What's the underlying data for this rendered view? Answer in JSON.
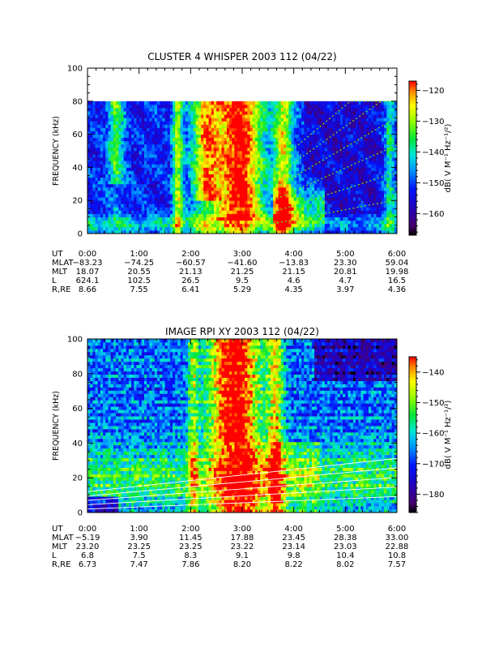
{
  "chart_data": [
    {
      "type": "heatmap",
      "title": "CLUSTER 4 WHISPER 2003 112 (04/22)",
      "ylabel": "FREQUENCY (kHz)",
      "ylim": [
        0,
        100
      ],
      "y_ticks": [
        "0",
        "20",
        "40",
        "60",
        "80",
        "100"
      ],
      "data_ylim": [
        0,
        80
      ],
      "x_ticks": [
        "0:00",
        "1:00",
        "2:00",
        "3:00",
        "4:00",
        "5:00",
        "6:00"
      ],
      "colorbar": {
        "label": "dB( V M⁻¹ Hz⁻¹/²)",
        "range": [
          -167,
          -117
        ],
        "ticks": [
          "-120",
          "-130",
          "-140",
          "-150",
          "-160"
        ]
      },
      "ephemeris": [
        {
          "label": "UT",
          "values": [
            "0:00",
            "1:00",
            "2:00",
            "3:00",
            "4:00",
            "5:00",
            "6:00"
          ]
        },
        {
          "label": "MLAT",
          "values": [
            "-83.23",
            "-74.25",
            "-60.57",
            "-41.60",
            "-13.83",
            "23.30",
            "59.04"
          ]
        },
        {
          "label": "MLT",
          "values": [
            "18.07",
            "20.55",
            "21.13",
            "21.25",
            "21.15",
            "20.81",
            "19.98"
          ]
        },
        {
          "label": "L",
          "values": [
            "624.1",
            "102.5",
            "26.5",
            "9.5",
            "4.6",
            "4.7",
            "16.5"
          ]
        },
        {
          "label": "R,RE",
          "values": [
            "8.66",
            "7.55",
            "6.41",
            "5.29",
            "4.35",
            "3.97",
            "4.36"
          ]
        }
      ]
    },
    {
      "type": "heatmap",
      "title": "IMAGE RPI XY 2003 112 (04/22)",
      "ylabel": "FREQUENCY (kHz)",
      "ylim": [
        0,
        100
      ],
      "y_ticks": [
        "0",
        "20",
        "40",
        "60",
        "80",
        "100"
      ],
      "data_ylim": [
        0,
        100
      ],
      "x_ticks": [
        "0:00",
        "1:00",
        "2:00",
        "3:00",
        "4:00",
        "5:00",
        "6:00"
      ],
      "colorbar": {
        "label": "dB( V M⁻¹ Hz⁻¹/²)",
        "range": [
          -186,
          -135
        ],
        "ticks": [
          "-140",
          "-150",
          "-160",
          "-170",
          "-180"
        ]
      },
      "ephemeris": [
        {
          "label": "UT",
          "values": [
            "0:00",
            "1:00",
            "2:00",
            "3:00",
            "4:00",
            "5:00",
            "6:00"
          ]
        },
        {
          "label": "MLAT",
          "values": [
            "-5.19",
            "3.90",
            "11.45",
            "17.88",
            "23.45",
            "28.38",
            "33.00"
          ]
        },
        {
          "label": "MLT",
          "values": [
            "23.20",
            "23.25",
            "23.25",
            "23.22",
            "23.14",
            "23.03",
            "22.88"
          ]
        },
        {
          "label": "L",
          "values": [
            "6.8",
            "7.5",
            "8.3",
            "9.1",
            "9.8",
            "10.4",
            "10.8"
          ]
        },
        {
          "label": "R,RE",
          "values": [
            "6.73",
            "7.47",
            "7.86",
            "8.20",
            "8.22",
            "8.02",
            "7.57"
          ]
        }
      ]
    }
  ]
}
